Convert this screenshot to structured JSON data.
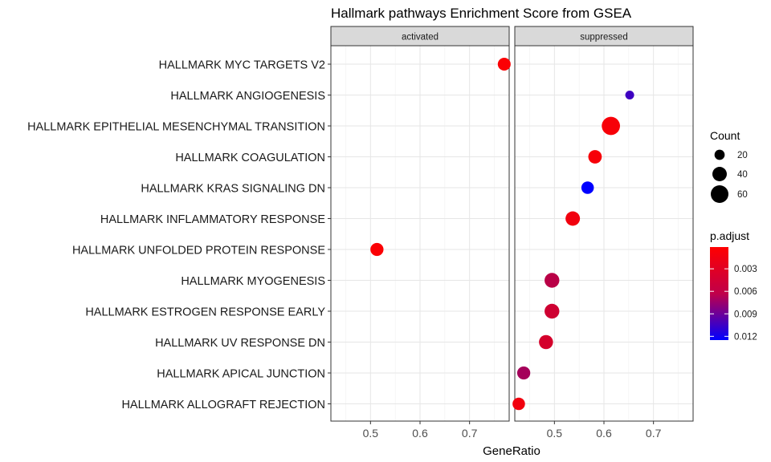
{
  "chart_data": {
    "type": "scatter",
    "title": "Hallmark pathways Enrichment Score from GSEA",
    "xlabel": "GeneRatio",
    "ylabel": "",
    "xlim": [
      0.42,
      0.78
    ],
    "x_ticks": [
      0.5,
      0.6,
      0.7
    ],
    "grid": true,
    "facets": [
      "activated",
      "suppressed"
    ],
    "categories": [
      "HALLMARK MYC TARGETS V2",
      "HALLMARK ANGIOGENESIS",
      "HALLMARK EPITHELIAL MESENCHYMAL TRANSITION",
      "HALLMARK COAGULATION",
      "HALLMARK KRAS SIGNALING DN",
      "HALLMARK INFLAMMATORY RESPONSE",
      "HALLMARK UNFOLDED PROTEIN RESPONSE",
      "HALLMARK MYOGENESIS",
      "HALLMARK ESTROGEN RESPONSE EARLY",
      "HALLMARK UV RESPONSE DN",
      "HALLMARK APICAL JUNCTION",
      "HALLMARK ALLOGRAFT REJECTION"
    ],
    "points": [
      {
        "pathway": "HALLMARK MYC TARGETS V2",
        "facet": "activated",
        "x": 0.77,
        "count": 32,
        "p_adjust": 0.0003
      },
      {
        "pathway": "HALLMARK UNFOLDED PROTEIN RESPONSE",
        "facet": "activated",
        "x": 0.513,
        "count": 33,
        "p_adjust": 0.0003
      },
      {
        "pathway": "HALLMARK ANGIOGENESIS",
        "facet": "suppressed",
        "x": 0.652,
        "count": 15,
        "p_adjust": 0.0095
      },
      {
        "pathway": "HALLMARK EPITHELIAL MESENCHYMAL TRANSITION",
        "facet": "suppressed",
        "x": 0.614,
        "count": 64,
        "p_adjust": 0.0005
      },
      {
        "pathway": "HALLMARK COAGULATION",
        "facet": "suppressed",
        "x": 0.582,
        "count": 35,
        "p_adjust": 0.0005
      },
      {
        "pathway": "HALLMARK KRAS SIGNALING DN",
        "facet": "suppressed",
        "x": 0.567,
        "count": 30,
        "p_adjust": 0.0125
      },
      {
        "pathway": "HALLMARK INFLAMMATORY RESPONSE",
        "facet": "suppressed",
        "x": 0.537,
        "count": 40,
        "p_adjust": 0.0008
      },
      {
        "pathway": "HALLMARK MYOGENESIS",
        "facet": "suppressed",
        "x": 0.495,
        "count": 42,
        "p_adjust": 0.0035
      },
      {
        "pathway": "HALLMARK ESTROGEN RESPONSE EARLY",
        "facet": "suppressed",
        "x": 0.495,
        "count": 42,
        "p_adjust": 0.0025
      },
      {
        "pathway": "HALLMARK UV RESPONSE DN",
        "facet": "suppressed",
        "x": 0.483,
        "count": 38,
        "p_adjust": 0.0022
      },
      {
        "pathway": "HALLMARK APICAL JUNCTION",
        "facet": "suppressed",
        "x": 0.438,
        "count": 33,
        "p_adjust": 0.0045
      },
      {
        "pathway": "HALLMARK ALLOGRAFT REJECTION",
        "facet": "suppressed",
        "x": 0.428,
        "count": 30,
        "p_adjust": 0.0008
      }
    ],
    "legend": {
      "placement": "right",
      "size_title": "Count",
      "size_breaks": [
        20,
        40,
        60
      ],
      "color_title": "p.adjust",
      "color_breaks": [
        0.003,
        0.006,
        0.009,
        0.012
      ],
      "color_range": [
        0.0001,
        0.0125
      ],
      "color_low": "#ff0000",
      "color_high": "#0000ff"
    }
  }
}
